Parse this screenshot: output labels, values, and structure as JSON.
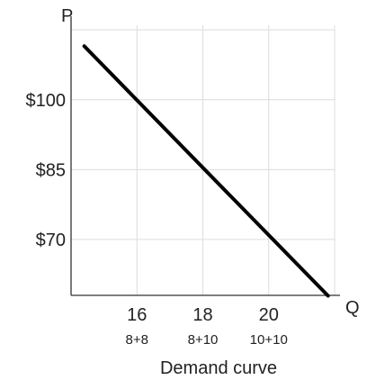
{
  "chart_data": {
    "type": "line",
    "title": "",
    "caption": "Demand curve",
    "xlabel": "Q",
    "ylabel": "P",
    "x_ticks": [
      {
        "value": 16,
        "label": "16",
        "sublabel": "8+8"
      },
      {
        "value": 18,
        "label": "18",
        "sublabel": "8+10"
      },
      {
        "value": 20,
        "label": "20",
        "sublabel": "10+10"
      }
    ],
    "y_ticks": [
      {
        "value": 100,
        "label": "$100"
      },
      {
        "value": 85,
        "label": "$85"
      },
      {
        "value": 70,
        "label": "$70"
      }
    ],
    "xlim": [
      14,
      22
    ],
    "ylim": [
      58,
      116
    ],
    "grid": true,
    "series": [
      {
        "x": [
          14.4,
          21.8
        ],
        "y": [
          111.5,
          57.9
        ],
        "color": "#000000"
      }
    ]
  }
}
